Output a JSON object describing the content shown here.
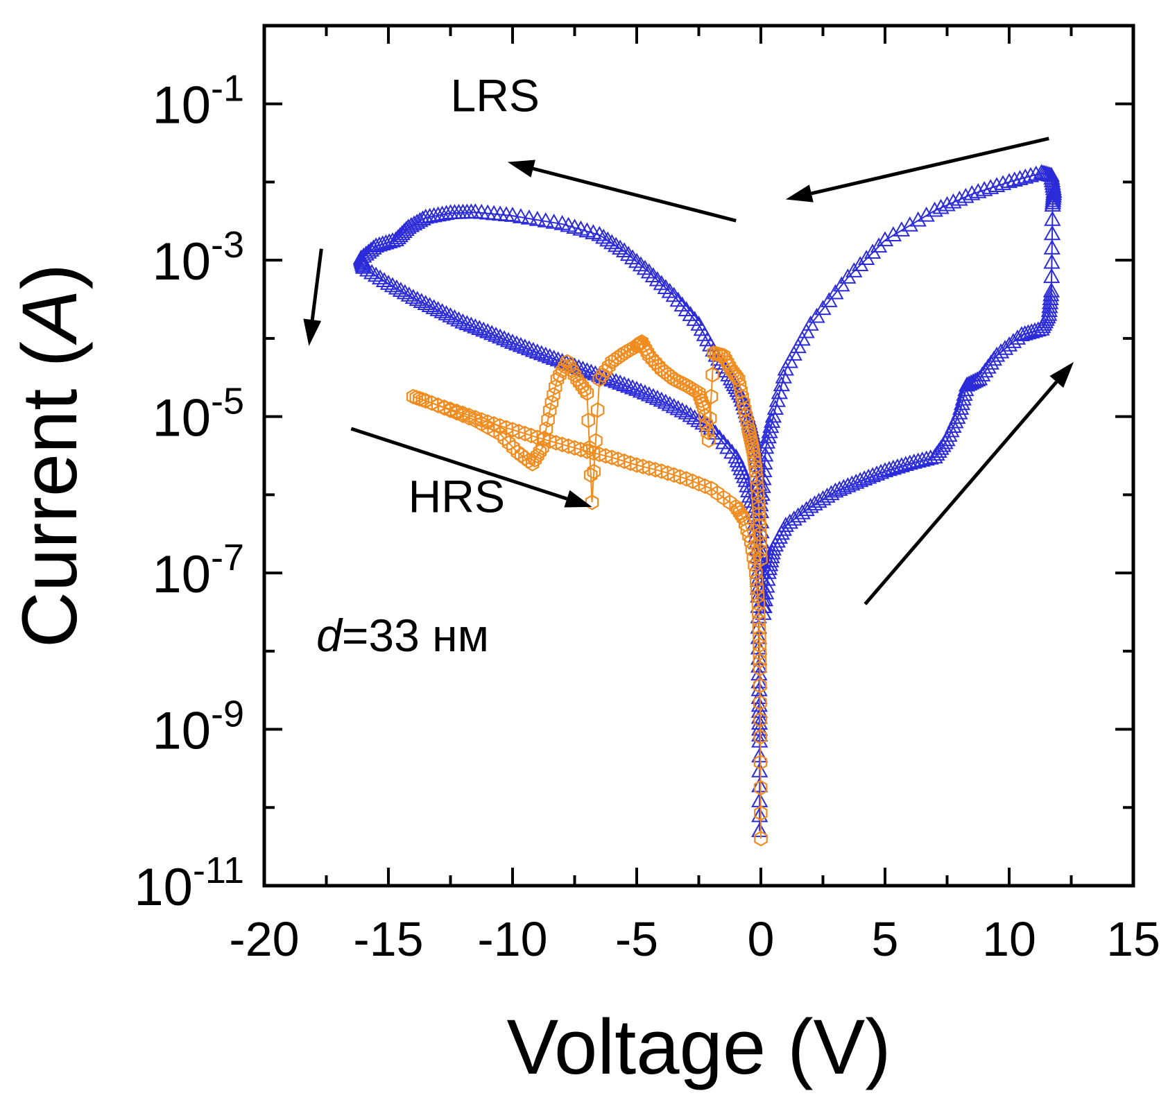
{
  "chart_data": {
    "type": "scatter",
    "title": "",
    "xlabel": "Voltage (V)",
    "ylabel": "Current (A)",
    "ylabel_parts": [
      "Current (",
      "A",
      ")"
    ],
    "xscale": "linear",
    "yscale": "log",
    "xlim": [
      -20,
      15
    ],
    "ylim": [
      1e-11,
      1
    ],
    "x_ticks": [
      {
        "value": -20,
        "label": "-20"
      },
      {
        "value": -15,
        "label": "-15"
      },
      {
        "value": -10,
        "label": "-10"
      },
      {
        "value": -5,
        "label": "-5"
      },
      {
        "value": 0,
        "label": "0"
      },
      {
        "value": 5,
        "label": "5"
      },
      {
        "value": 10,
        "label": "10"
      },
      {
        "value": 15,
        "label": "15"
      }
    ],
    "y_ticks": [
      {
        "exp": -11,
        "base": "10",
        "sup": "-11"
      },
      {
        "exp": -9,
        "base": "10",
        "sup": "-9"
      },
      {
        "exp": -7,
        "base": "10",
        "sup": "-7"
      },
      {
        "exp": -5,
        "base": "10",
        "sup": "-5"
      },
      {
        "exp": -3,
        "base": "10",
        "sup": "-3"
      },
      {
        "exp": -1,
        "base": "10",
        "sup": "-1"
      }
    ],
    "grid": false,
    "series": [
      {
        "name": "LRS sweep (blue)",
        "marker": "triangle",
        "color": "#2b2bd9",
        "points": [
          [
            -0.05,
            5e-11
          ],
          [
            -0.05,
            7e-10
          ],
          [
            -0.06,
            2e-09
          ],
          [
            -0.08,
            8e-09
          ],
          [
            -0.1,
            5e-08
          ],
          [
            -0.15,
            2e-07
          ],
          [
            -0.3,
            6e-07
          ],
          [
            -0.6,
            1.5e-06
          ],
          [
            -1,
            3e-06
          ],
          [
            -2,
            7e-06
          ],
          [
            -3,
            1.1e-05
          ],
          [
            -4,
            1.6e-05
          ],
          [
            -5,
            2.2e-05
          ],
          [
            -6,
            2.9e-05
          ],
          [
            -7,
            3.8e-05
          ],
          [
            -8,
            5e-05
          ],
          [
            -9,
            6.6e-05
          ],
          [
            -10,
            8.8e-05
          ],
          [
            -11,
            0.00012
          ],
          [
            -12,
            0.00016
          ],
          [
            -13,
            0.00023
          ],
          [
            -14,
            0.00033
          ],
          [
            -15,
            0.0005
          ],
          [
            -16,
            0.0008
          ],
          [
            -16.1,
            0.00105
          ],
          [
            -15.5,
            0.0015
          ],
          [
            -14.7,
            0.0018
          ],
          [
            -14.2,
            0.0026
          ],
          [
            -13.5,
            0.0035
          ],
          [
            -12.5,
            0.004
          ],
          [
            -11.5,
            0.0041
          ],
          [
            -10,
            0.0037
          ],
          [
            -8,
            0.0029
          ],
          [
            -6.5,
            0.0021
          ],
          [
            -5.5,
            0.0013
          ],
          [
            -4.5,
            0.0007
          ],
          [
            -3.5,
            0.00035
          ],
          [
            -2.5,
            0.00015
          ],
          [
            -1.8,
            6e-05
          ],
          [
            -1.2,
            3e-05
          ],
          [
            -0.8,
            1.8e-05
          ],
          [
            -0.5,
            9e-06
          ],
          [
            -0.3,
            5e-06
          ],
          [
            -0.1,
            2e-06
          ],
          [
            0,
            6e-07
          ],
          [
            0.05,
            1e-07
          ],
          [
            0.1,
            3e-08
          ],
          [
            0.3,
            1e-07
          ],
          [
            0.5,
            2e-07
          ],
          [
            1,
            4e-07
          ],
          [
            2,
            7e-07
          ],
          [
            3,
            1.1e-06
          ],
          [
            4,
            1.5e-06
          ],
          [
            5,
            2e-06
          ],
          [
            6,
            2.5e-06
          ],
          [
            7,
            3e-06
          ],
          [
            7.5,
            5e-06
          ],
          [
            8,
            1.1e-05
          ],
          [
            8.3,
            2.5e-05
          ],
          [
            8.8,
            3e-05
          ],
          [
            9.5,
            6e-05
          ],
          [
            10.5,
            0.00011
          ],
          [
            11.3,
            0.00013
          ],
          [
            11.6,
            0.0002
          ],
          [
            11.7,
            0.0004
          ],
          [
            11.75,
            0.005
          ],
          [
            11.8,
            0.0075
          ],
          [
            11.7,
            0.012
          ],
          [
            11.3,
            0.013
          ],
          [
            10,
            0.01
          ],
          [
            8.5,
            0.007
          ],
          [
            7,
            0.0043
          ],
          [
            5,
            0.0018
          ],
          [
            3.5,
            0.0006
          ],
          [
            2,
            0.00015
          ],
          [
            1,
            4e-05
          ],
          [
            0.5,
            1e-05
          ],
          [
            0.2,
            4e-06
          ],
          [
            0.05,
            1e-06
          ]
        ]
      },
      {
        "name": "HRS sweep (orange)",
        "marker": "hexagon",
        "color": "#f08c1e",
        "points": [
          [
            0,
            4e-11
          ],
          [
            -0.02,
            8e-10
          ],
          [
            -0.04,
            6e-09
          ],
          [
            -0.06,
            1.5e-08
          ],
          [
            -0.1,
            4e-08
          ],
          [
            -0.2,
            1e-07
          ],
          [
            -0.4,
            2.5e-07
          ],
          [
            -0.7,
            5e-07
          ],
          [
            -1,
            7e-07
          ],
          [
            -2,
            1.2e-06
          ],
          [
            -3,
            1.6e-06
          ],
          [
            -4,
            2e-06
          ],
          [
            -5,
            2.4e-06
          ],
          [
            -6,
            3e-06
          ],
          [
            -7,
            3.6e-06
          ],
          [
            -8,
            4.4e-06
          ],
          [
            -9,
            5.4e-06
          ],
          [
            -10,
            6.8e-06
          ],
          [
            -11,
            8.5e-06
          ],
          [
            -12,
            1.1e-05
          ],
          [
            -13,
            1.4e-05
          ],
          [
            -14,
            1.8e-05
          ],
          [
            -13.5,
            1.6e-05
          ],
          [
            -12.5,
            1.2e-05
          ],
          [
            -11.5,
            9e-06
          ],
          [
            -10.5,
            6e-06
          ],
          [
            -9.8,
            3.5e-06
          ],
          [
            -9.2,
            2.5e-06
          ],
          [
            -8.8,
            4e-06
          ],
          [
            -8.5,
            1.2e-05
          ],
          [
            -8.2,
            3e-05
          ],
          [
            -7.8,
            5e-05
          ],
          [
            -7.4,
            3e-05
          ],
          [
            -7,
            2e-05
          ],
          [
            -6.8,
            8e-07
          ],
          [
            -6.5,
            3e-05
          ],
          [
            -6,
            5e-05
          ],
          [
            -5.5,
            6.5e-05
          ],
          [
            -5,
            8e-05
          ],
          [
            -4.8,
            9e-05
          ],
          [
            -4.5,
            6e-05
          ],
          [
            -4,
            4e-05
          ],
          [
            -3.5,
            3e-05
          ],
          [
            -3,
            2.5e-05
          ],
          [
            -2.5,
            2e-05
          ],
          [
            -2.3,
            1.3e-05
          ],
          [
            -2.1,
            5e-06
          ],
          [
            -1.9,
            6.5e-05
          ],
          [
            -1.5,
            6e-05
          ],
          [
            -1.2,
            4e-05
          ],
          [
            -0.9,
            3e-05
          ],
          [
            -0.7,
            1.5e-05
          ],
          [
            -0.5,
            7e-06
          ],
          [
            -0.4,
            5e-06
          ],
          [
            -0.3,
            3.5e-06
          ],
          [
            -0.2,
            2e-06
          ],
          [
            -0.1,
            8e-07
          ],
          [
            -0.05,
            4e-07
          ],
          [
            0,
            1.5e-07
          ]
        ]
      }
    ],
    "annotations": [
      {
        "text": "LRS",
        "x": -12.5,
        "y": 0.08
      },
      {
        "text": "HRS",
        "x": -14.2,
        "y": 6e-07
      },
      {
        "text_italic": "d",
        "text": "=33 нм",
        "x": -17.9,
        "y": 1e-08
      }
    ],
    "arrows": [
      {
        "from": [
          -1,
          0.0032
        ],
        "to": [
          -10.2,
          0.018
        ]
      },
      {
        "from": [
          11.6,
          0.036
        ],
        "to": [
          1,
          0.006
        ]
      },
      {
        "from": [
          -17.7,
          0.0014
        ],
        "to": [
          -18.2,
          8e-05
        ]
      },
      {
        "from": [
          -16.5,
          7e-06
        ],
        "to": [
          -6.8,
          7e-07
        ]
      },
      {
        "from": [
          4.2,
          4e-08
        ],
        "to": [
          12.6,
          5e-05
        ]
      }
    ]
  }
}
